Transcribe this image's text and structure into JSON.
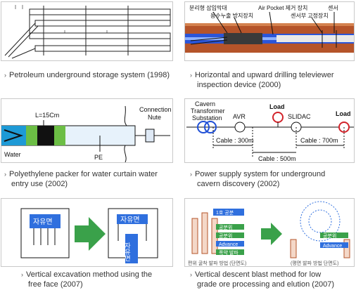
{
  "items": [
    {
      "caption": "Petroleum underground storage system (1998)",
      "bullet": "›"
    },
    {
      "caption_line1": "Horizontal and upward drilling televiewer",
      "caption_line2": "inspection device (2000)",
      "bullet": "›",
      "labels": {
        "packer": "분리형 삽입막대",
        "leak": "용수누출 방지장치",
        "airpocket": "Air Pocket 제거 장치",
        "sensor_fix": "센서부 고정장치",
        "sensor": "센서"
      }
    },
    {
      "caption_line1": "Polyethylene packer for water curtain water",
      "caption_line2": "entry use (2002)",
      "bullet": "›",
      "labels": {
        "length": "L=15Cm",
        "connection": "Connection",
        "nute": "Nute",
        "water": "Water",
        "pe": "PE"
      }
    },
    {
      "caption_line1": "Power supply system for underground",
      "caption_line2": "cavern discovery (2002)",
      "bullet": "›",
      "labels": {
        "cavern": "Cavern",
        "transformer": "Transformer",
        "substation": "Substation",
        "avr": "AVR",
        "slidac": "SLIDAC",
        "load1": "Load",
        "load2": "Load",
        "cable1": "Cable : 300m",
        "cable2": "Cable : 500m",
        "cable3": "Cable : 700m"
      }
    },
    {
      "caption_line1": "Vertical excavation method using the",
      "caption_line2": "free face (2007)",
      "bullet": "›",
      "labels": {
        "free_face1": "자유면",
        "free_face2": "자유면",
        "free_face3": "자유면"
      }
    },
    {
      "caption_line1": "Vertical descent blast method for low",
      "caption_line2": "grade ore processing and elution (2007)",
      "bullet": "›",
      "labels": {
        "l1": "1호 공분",
        "l2": "공분위",
        "l3": "공분위",
        "l4": "Advance",
        "l5": "폭약 발파",
        "l6": "공분위",
        "l7": "Advance",
        "bottom_left": "편위 굴착 발파 방법 (단면도)",
        "bottom_right": "(평면 발파 방법 단면도)"
      }
    }
  ],
  "colors": {
    "rock": "#b5542a",
    "blue": "#1f4fd6",
    "green": "#3aa14a",
    "red": "#d2232a",
    "caption": "#333333"
  }
}
